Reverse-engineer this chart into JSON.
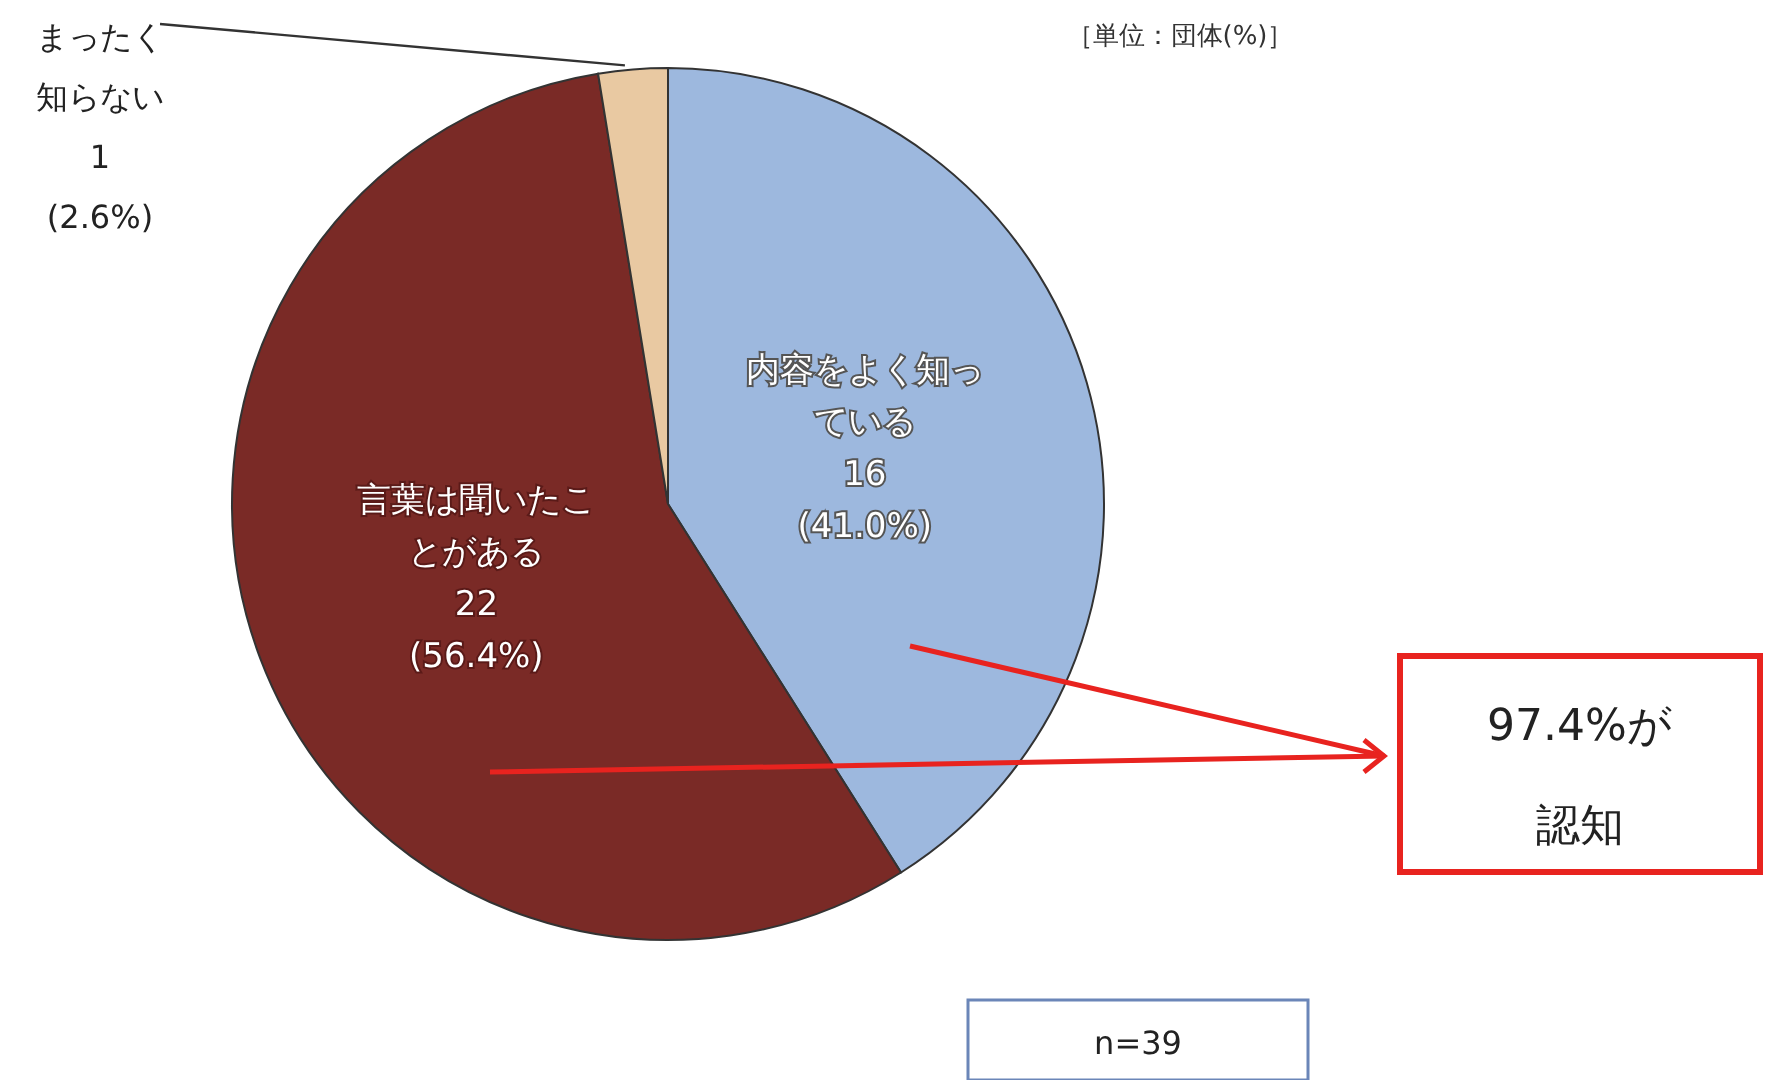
{
  "chart_data": {
    "type": "pie",
    "categories": [
      "内容をよく知っている",
      "言葉は聞いたことがある",
      "まったく知らない"
    ],
    "values": [
      16,
      22,
      1
    ],
    "colors": [
      "#9db8de",
      "#7a2a26",
      "#e9c9a2"
    ],
    "value_labels": [
      "16 (41.0%)",
      "22 (56.4%)",
      "1 (2.6%)"
    ],
    "annotations": [
      "［単位：団体(%)］",
      "97.4%が認知",
      "n=39"
    ]
  }
}
